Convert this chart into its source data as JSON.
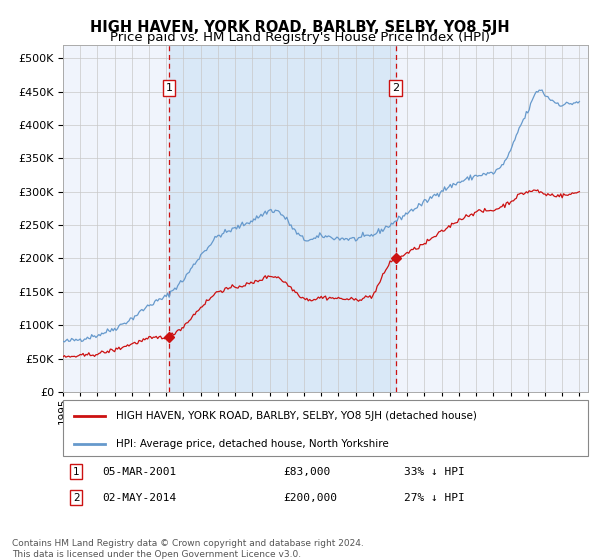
{
  "title": "HIGH HAVEN, YORK ROAD, BARLBY, SELBY, YO8 5JH",
  "subtitle": "Price paid vs. HM Land Registry's House Price Index (HPI)",
  "ytick_values": [
    0,
    50000,
    100000,
    150000,
    200000,
    250000,
    300000,
    350000,
    400000,
    450000,
    500000
  ],
  "ylim": [
    0,
    520000
  ],
  "xlim_start": 1995.0,
  "xlim_end": 2025.5,
  "plot_bg_color": "#dce8f5",
  "line_color_hpi": "#6699cc",
  "line_color_property": "#cc1111",
  "vline_color": "#cc1111",
  "sale1_x": 2001.17,
  "sale1_y": 83000,
  "sale2_x": 2014.33,
  "sale2_y": 200000,
  "legend_label1": "HIGH HAVEN, YORK ROAD, BARLBY, SELBY, YO8 5JH (detached house)",
  "legend_label2": "HPI: Average price, detached house, North Yorkshire",
  "footnote": "Contains HM Land Registry data © Crown copyright and database right 2024.\nThis data is licensed under the Open Government Licence v3.0."
}
